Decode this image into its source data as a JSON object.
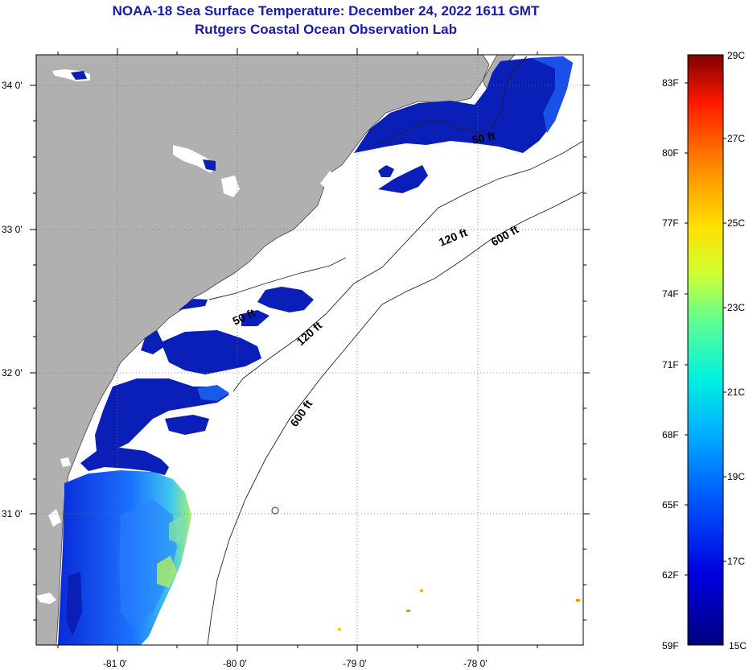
{
  "title": "NOAA-18 Sea Surface Temperature:  December 24, 2022 1611 GMT",
  "subtitle": "Rutgers Coastal Ocean Observation Lab",
  "lat_labels": [
    "34 0'",
    "33 0'",
    "32 0'",
    "31 0'"
  ],
  "lon_labels": [
    "-81 0'",
    "-80 0'",
    "-79 0'",
    "-78 0'"
  ],
  "contour_labels": {
    "c50_north": "50 ft",
    "c50_south": "50 ft",
    "c120_north": "120 ft",
    "c120_south": "120 ft",
    "c600_north": "600 ft",
    "c600_south": "600 ft"
  },
  "colorbar": {
    "celsius": [
      "29C",
      "27C",
      "25C",
      "23C",
      "21C",
      "19C",
      "17C",
      "15C"
    ],
    "fahrenheit": [
      "83F",
      "80F",
      "77F",
      "74F",
      "71F",
      "68F",
      "65F",
      "62F",
      "59F"
    ],
    "range_c": [
      15,
      29
    ]
  },
  "colors": {
    "title": "#1a1aa6",
    "land": "#b0b0b0",
    "ocean_nodata": "#ffffff"
  }
}
